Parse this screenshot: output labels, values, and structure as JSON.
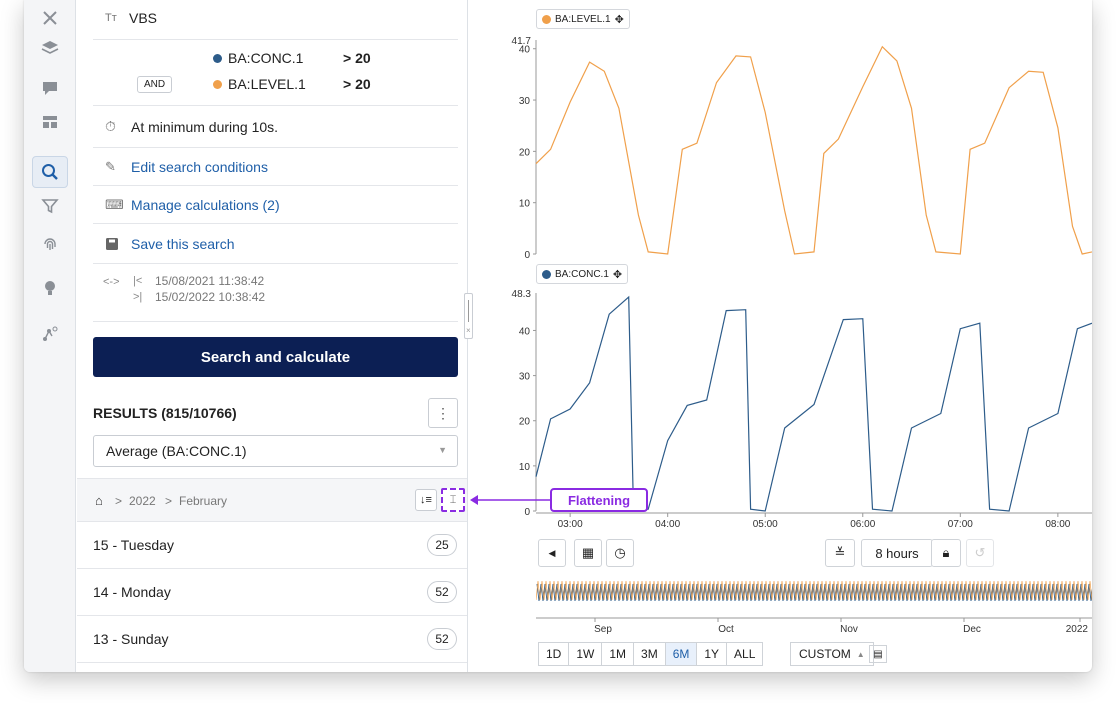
{
  "conditions": {
    "name": "VBS",
    "items": [
      {
        "tag": "BA:CONC.1",
        "color": "#2d5c8a",
        "threshold": "> 20"
      },
      {
        "tag": "BA:LEVEL.1",
        "color": "#f0a04b",
        "threshold": "> 20",
        "operator": "AND"
      }
    ],
    "duration": "At minimum during 10s."
  },
  "actions": {
    "edit": "Edit search conditions",
    "manage": "Manage calculations (2)",
    "save": "Save this search"
  },
  "period": {
    "start": "15/08/2021 11:38:42",
    "end": "15/02/2022 10:38:42"
  },
  "search_button": "Search and calculate",
  "results": {
    "title": "RESULTS (815/10766)",
    "select_value": "Average (BA:CONC.1)",
    "breadcrumb": [
      "2022",
      "February"
    ],
    "days": [
      {
        "label": "15 - Tuesday",
        "count": "25"
      },
      {
        "label": "14 - Monday",
        "count": "52"
      },
      {
        "label": "13 - Sunday",
        "count": "52"
      }
    ]
  },
  "annotation": "Flattening",
  "toolbar": {
    "duration": "8 hours",
    "custom": "CUSTOM"
  },
  "ranges": [
    "1D",
    "1W",
    "1M",
    "3M",
    "6M",
    "1Y",
    "ALL"
  ],
  "active_range": "6M",
  "overview_months": [
    "Sep",
    "Oct",
    "Nov",
    "Dec",
    "2022"
  ],
  "chart_data": [
    {
      "type": "line",
      "series": [
        {
          "name": "BA:LEVEL.1",
          "color": "#f0a04b"
        }
      ],
      "y_max_label": "41.7",
      "y_ticks": [
        "40",
        "30",
        "20",
        "10",
        "0"
      ],
      "ylim": [
        0,
        41.7
      ],
      "x_ticks": [
        "03:00",
        "04:00",
        "05:00",
        "06:00",
        "07:00",
        "08:00"
      ],
      "x_hours": [
        2.65,
        8.35
      ],
      "points": [
        [
          2.65,
          18
        ],
        [
          2.8,
          20
        ],
        [
          3.0,
          30
        ],
        [
          3.2,
          37
        ],
        [
          3.35,
          36
        ],
        [
          3.5,
          28
        ],
        [
          3.7,
          8
        ],
        [
          3.8,
          0
        ],
        [
          4.0,
          0
        ],
        [
          4.15,
          20
        ],
        [
          4.3,
          22
        ],
        [
          4.5,
          33
        ],
        [
          4.7,
          39
        ],
        [
          4.85,
          38
        ],
        [
          5.0,
          28
        ],
        [
          5.2,
          8
        ],
        [
          5.3,
          0
        ],
        [
          5.5,
          0
        ],
        [
          5.6,
          20
        ],
        [
          5.75,
          22
        ],
        [
          6.0,
          33
        ],
        [
          6.2,
          40
        ],
        [
          6.35,
          38
        ],
        [
          6.5,
          28
        ],
        [
          6.65,
          8
        ],
        [
          6.75,
          0
        ],
        [
          7.0,
          0
        ],
        [
          7.1,
          20
        ],
        [
          7.25,
          22
        ],
        [
          7.5,
          32
        ],
        [
          7.7,
          36
        ],
        [
          7.85,
          35
        ],
        [
          8.0,
          25
        ],
        [
          8.15,
          5
        ],
        [
          8.25,
          0
        ],
        [
          8.35,
          0
        ]
      ]
    },
    {
      "type": "line",
      "series": [
        {
          "name": "BA:CONC.1",
          "color": "#2d5c8a"
        }
      ],
      "y_max_label": "48.3",
      "y_ticks": [
        "40",
        "30",
        "20",
        "10",
        "0"
      ],
      "ylim": [
        0,
        48.3
      ],
      "x_ticks": [
        "03:00",
        "04:00",
        "05:00",
        "06:00",
        "07:00",
        "08:00"
      ],
      "x_hours": [
        2.65,
        8.35
      ],
      "points": [
        [
          2.65,
          8
        ],
        [
          2.8,
          20
        ],
        [
          3.0,
          23
        ],
        [
          3.2,
          28
        ],
        [
          3.4,
          44
        ],
        [
          3.6,
          47
        ],
        [
          3.65,
          0
        ],
        [
          3.8,
          0
        ],
        [
          4.0,
          16
        ],
        [
          4.2,
          23
        ],
        [
          4.4,
          25
        ],
        [
          4.6,
          44
        ],
        [
          4.8,
          45
        ],
        [
          4.85,
          0
        ],
        [
          5.0,
          0
        ],
        [
          5.2,
          18
        ],
        [
          5.5,
          24
        ],
        [
          5.8,
          42
        ],
        [
          6.0,
          43
        ],
        [
          6.1,
          0
        ],
        [
          6.3,
          0
        ],
        [
          6.5,
          18
        ],
        [
          6.8,
          22
        ],
        [
          7.0,
          40
        ],
        [
          7.2,
          42
        ],
        [
          7.3,
          0
        ],
        [
          7.5,
          0
        ],
        [
          7.7,
          18
        ],
        [
          8.0,
          22
        ],
        [
          8.2,
          40
        ],
        [
          8.35,
          42
        ]
      ]
    }
  ]
}
